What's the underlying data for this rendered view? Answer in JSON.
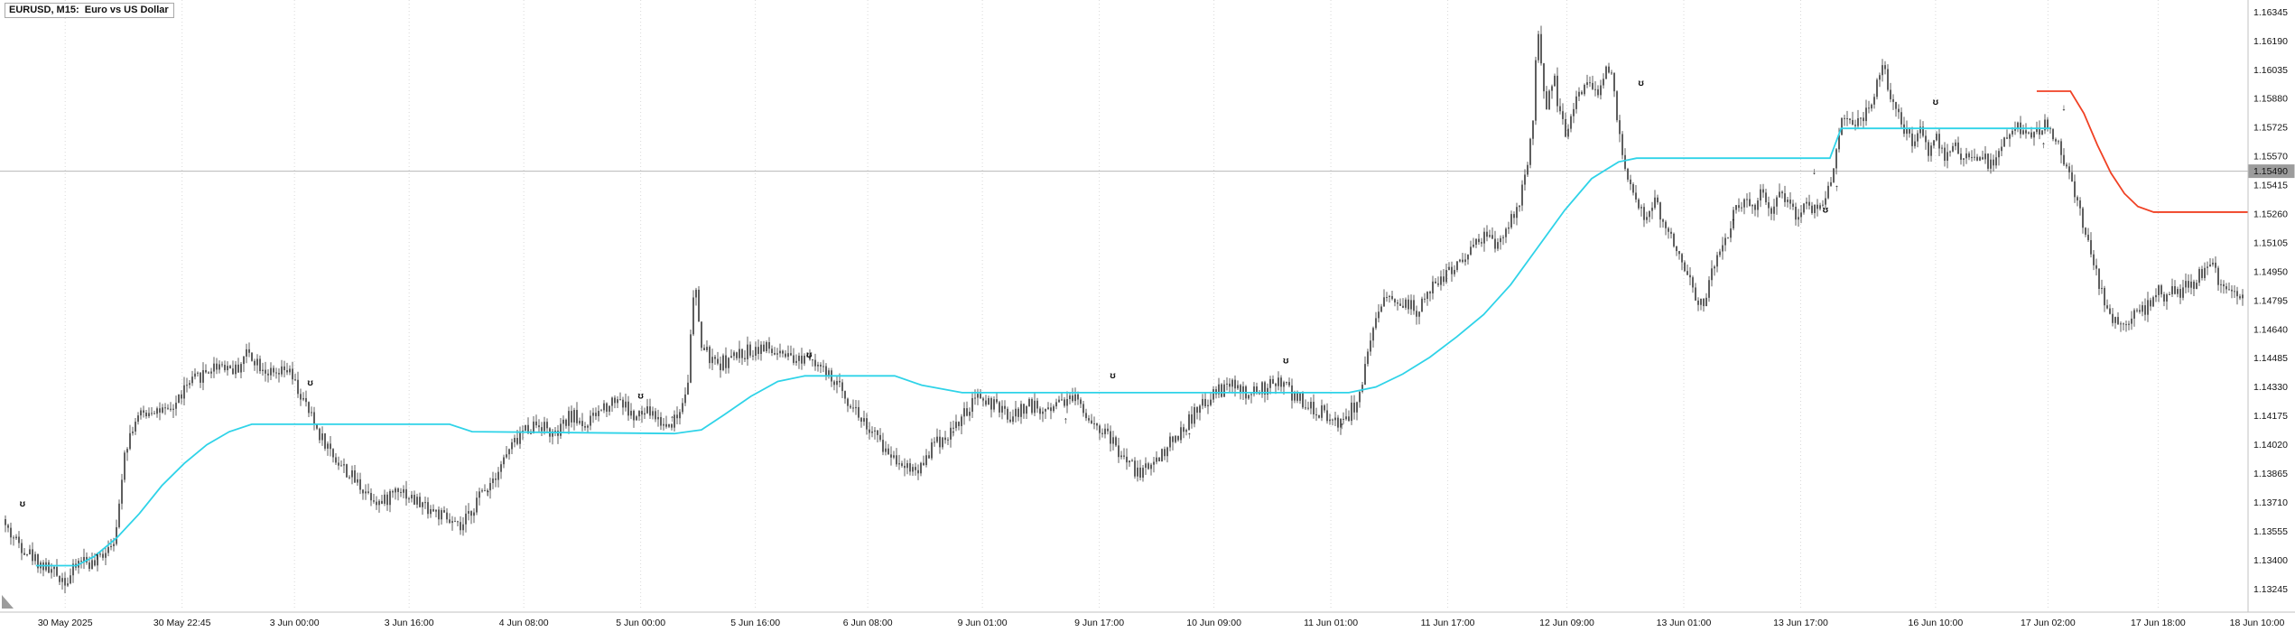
{
  "window": {
    "title": "EURUSD, M15:  Euro vs US Dollar"
  },
  "chart_data": {
    "type": "candlestick",
    "symbol": "EURUSD",
    "timeframe": "M15",
    "description": "Euro vs US Dollar",
    "candle_color": "#4d4d4d",
    "grid_color": "#d9d9d9",
    "axis_line_color": "#c0c0c0",
    "y_axis": {
      "min": 1.1313,
      "max": 1.1641,
      "ticks": [
        "1.16345",
        "1.16190",
        "1.16035",
        "1.15880",
        "1.15725",
        "1.15570",
        "1.15415",
        "1.15260",
        "1.15105",
        "1.14950",
        "1.14795",
        "1.14640",
        "1.14485",
        "1.14330",
        "1.14175",
        "1.14020",
        "1.13865",
        "1.13710",
        "1.13555",
        "1.13400",
        "1.13245"
      ]
    },
    "x_axis": {
      "ticks": [
        {
          "label": "30 May 2025",
          "pos": 0.029
        },
        {
          "label": "30 May 22:45",
          "pos": 0.081
        },
        {
          "label": "3 Jun 00:00",
          "pos": 0.131
        },
        {
          "label": "3 Jun 16:00",
          "pos": 0.182
        },
        {
          "label": "4 Jun 08:00",
          "pos": 0.233
        },
        {
          "label": "5 Jun 00:00",
          "pos": 0.285
        },
        {
          "label": "5 Jun 16:00",
          "pos": 0.336
        },
        {
          "label": "6 Jun 08:00",
          "pos": 0.386
        },
        {
          "label": "9 Jun 01:00",
          "pos": 0.437
        },
        {
          "label": "9 Jun 17:00",
          "pos": 0.489
        },
        {
          "label": "10 Jun 09:00",
          "pos": 0.54
        },
        {
          "label": "11 Jun 01:00",
          "pos": 0.592
        },
        {
          "label": "11 Jun 17:00",
          "pos": 0.644
        },
        {
          "label": "12 Jun 09:00",
          "pos": 0.697
        },
        {
          "label": "13 Jun 01:00",
          "pos": 0.749
        },
        {
          "label": "13 Jun 17:00",
          "pos": 0.801
        },
        {
          "label": "16 Jun 10:00",
          "pos": 0.861
        },
        {
          "label": "17 Jun 02:00",
          "pos": 0.911
        },
        {
          "label": "17 Jun 18:00",
          "pos": 0.96
        },
        {
          "label": "18 Jun 10:00",
          "pos": 1.005
        }
      ]
    },
    "price_line": {
      "value": 1.1549,
      "label": "1.15490",
      "line_color": "#b8b8b8",
      "tag_bg": "#9c9c9c",
      "tag_text_color": "#ffffff"
    },
    "price_path": [
      [
        0.0,
        1.1362
      ],
      [
        0.006,
        1.1352
      ],
      [
        0.012,
        1.1345
      ],
      [
        0.018,
        1.1338
      ],
      [
        0.024,
        1.1333
      ],
      [
        0.03,
        1.1329
      ],
      [
        0.036,
        1.1341
      ],
      [
        0.042,
        1.1337
      ],
      [
        0.048,
        1.1348
      ],
      [
        0.052,
        1.1355
      ],
      [
        0.055,
        1.1398
      ],
      [
        0.06,
        1.1415
      ],
      [
        0.068,
        1.1422
      ],
      [
        0.075,
        1.1418
      ],
      [
        0.082,
        1.1432
      ],
      [
        0.09,
        1.144
      ],
      [
        0.098,
        1.1446
      ],
      [
        0.105,
        1.1442
      ],
      [
        0.11,
        1.1452
      ],
      [
        0.116,
        1.1445
      ],
      [
        0.122,
        1.1438
      ],
      [
        0.128,
        1.1442
      ],
      [
        0.135,
        1.1425
      ],
      [
        0.142,
        1.1408
      ],
      [
        0.149,
        1.1395
      ],
      [
        0.156,
        1.1385
      ],
      [
        0.163,
        1.1377
      ],
      [
        0.17,
        1.137
      ],
      [
        0.177,
        1.138
      ],
      [
        0.184,
        1.1372
      ],
      [
        0.191,
        1.1368
      ],
      [
        0.198,
        1.1362
      ],
      [
        0.205,
        1.1356
      ],
      [
        0.212,
        1.1372
      ],
      [
        0.219,
        1.1384
      ],
      [
        0.226,
        1.1398
      ],
      [
        0.233,
        1.141
      ],
      [
        0.24,
        1.1414
      ],
      [
        0.247,
        1.1406
      ],
      [
        0.254,
        1.1418
      ],
      [
        0.261,
        1.1412
      ],
      [
        0.268,
        1.1422
      ],
      [
        0.275,
        1.1428
      ],
      [
        0.282,
        1.1416
      ],
      [
        0.289,
        1.142
      ],
      [
        0.296,
        1.1412
      ],
      [
        0.302,
        1.1418
      ],
      [
        0.306,
        1.1438
      ],
      [
        0.309,
        1.149
      ],
      [
        0.312,
        1.1455
      ],
      [
        0.318,
        1.1445
      ],
      [
        0.325,
        1.1448
      ],
      [
        0.332,
        1.1452
      ],
      [
        0.339,
        1.1455
      ],
      [
        0.346,
        1.145
      ],
      [
        0.353,
        1.1446
      ],
      [
        0.36,
        1.1452
      ],
      [
        0.367,
        1.144
      ],
      [
        0.374,
        1.1432
      ],
      [
        0.381,
        1.142
      ],
      [
        0.388,
        1.1408
      ],
      [
        0.395,
        1.1398
      ],
      [
        0.402,
        1.1392
      ],
      [
        0.408,
        1.1388
      ],
      [
        0.415,
        1.1402
      ],
      [
        0.422,
        1.1408
      ],
      [
        0.429,
        1.1418
      ],
      [
        0.436,
        1.1428
      ],
      [
        0.443,
        1.1422
      ],
      [
        0.45,
        1.1416
      ],
      [
        0.457,
        1.1424
      ],
      [
        0.464,
        1.142
      ],
      [
        0.471,
        1.1426
      ],
      [
        0.478,
        1.1428
      ],
      [
        0.485,
        1.1416
      ],
      [
        0.492,
        1.1408
      ],
      [
        0.499,
        1.1396
      ],
      [
        0.506,
        1.1387
      ],
      [
        0.513,
        1.1392
      ],
      [
        0.52,
        1.1402
      ],
      [
        0.527,
        1.1412
      ],
      [
        0.534,
        1.1422
      ],
      [
        0.541,
        1.143
      ],
      [
        0.548,
        1.1434
      ],
      [
        0.555,
        1.1428
      ],
      [
        0.562,
        1.1432
      ],
      [
        0.569,
        1.1436
      ],
      [
        0.576,
        1.1428
      ],
      [
        0.583,
        1.1422
      ],
      [
        0.59,
        1.1418
      ],
      [
        0.597,
        1.1414
      ],
      [
        0.602,
        1.1422
      ],
      [
        0.606,
        1.1435
      ],
      [
        0.61,
        1.1458
      ],
      [
        0.615,
        1.1478
      ],
      [
        0.62,
        1.1482
      ],
      [
        0.625,
        1.1478
      ],
      [
        0.63,
        1.1474
      ],
      [
        0.635,
        1.1482
      ],
      [
        0.64,
        1.149
      ],
      [
        0.645,
        1.1495
      ],
      [
        0.65,
        1.1502
      ],
      [
        0.655,
        1.1508
      ],
      [
        0.66,
        1.1515
      ],
      [
        0.665,
        1.1508
      ],
      [
        0.67,
        1.1518
      ],
      [
        0.675,
        1.1528
      ],
      [
        0.679,
        1.1548
      ],
      [
        0.682,
        1.1575
      ],
      [
        0.684,
        1.1632
      ],
      [
        0.686,
        1.1595
      ],
      [
        0.688,
        1.158
      ],
      [
        0.691,
        1.1602
      ],
      [
        0.694,
        1.1578
      ],
      [
        0.697,
        1.1568
      ],
      [
        0.7,
        1.1585
      ],
      [
        0.703,
        1.1592
      ],
      [
        0.706,
        1.16
      ],
      [
        0.709,
        1.1588
      ],
      [
        0.712,
        1.1595
      ],
      [
        0.715,
        1.1608
      ],
      [
        0.718,
        1.1592
      ],
      [
        0.721,
        1.1562
      ],
      [
        0.724,
        1.1548
      ],
      [
        0.727,
        1.1538
      ],
      [
        0.73,
        1.1528
      ],
      [
        0.733,
        1.1522
      ],
      [
        0.736,
        1.1532
      ],
      [
        0.739,
        1.1524
      ],
      [
        0.742,
        1.1516
      ],
      [
        0.745,
        1.1508
      ],
      [
        0.748,
        1.1502
      ],
      [
        0.751,
        1.1494
      ],
      [
        0.754,
        1.1482
      ],
      [
        0.757,
        1.1476
      ],
      [
        0.76,
        1.1488
      ],
      [
        0.764,
        1.1502
      ],
      [
        0.768,
        1.1515
      ],
      [
        0.772,
        1.1528
      ],
      [
        0.776,
        1.1536
      ],
      [
        0.78,
        1.1528
      ],
      [
        0.784,
        1.1538
      ],
      [
        0.788,
        1.153
      ],
      [
        0.792,
        1.154
      ],
      [
        0.796,
        1.1532
      ],
      [
        0.8,
        1.1524
      ],
      [
        0.804,
        1.1532
      ],
      [
        0.808,
        1.1526
      ],
      [
        0.812,
        1.1538
      ],
      [
        0.815,
        1.1548
      ],
      [
        0.818,
        1.1572
      ],
      [
        0.822,
        1.158
      ],
      [
        0.826,
        1.1574
      ],
      [
        0.83,
        1.1582
      ],
      [
        0.834,
        1.1592
      ],
      [
        0.837,
        1.1608
      ],
      [
        0.84,
        1.1594
      ],
      [
        0.843,
        1.1582
      ],
      [
        0.846,
        1.1574
      ],
      [
        0.85,
        1.1564
      ],
      [
        0.854,
        1.157
      ],
      [
        0.858,
        1.156
      ],
      [
        0.862,
        1.1566
      ],
      [
        0.866,
        1.1556
      ],
      [
        0.87,
        1.1562
      ],
      [
        0.874,
        1.1556
      ],
      [
        0.878,
        1.156
      ],
      [
        0.882,
        1.1556
      ],
      [
        0.886,
        1.1552
      ],
      [
        0.89,
        1.156
      ],
      [
        0.894,
        1.1568
      ],
      [
        0.898,
        1.1572
      ],
      [
        0.902,
        1.1566
      ],
      [
        0.906,
        1.1572
      ],
      [
        0.91,
        1.1574
      ],
      [
        0.914,
        1.1568
      ],
      [
        0.918,
        1.1556
      ],
      [
        0.921,
        1.1546
      ],
      [
        0.924,
        1.1532
      ],
      [
        0.927,
        1.1518
      ],
      [
        0.93,
        1.1504
      ],
      [
        0.933,
        1.1492
      ],
      [
        0.936,
        1.148
      ],
      [
        0.939,
        1.1472
      ],
      [
        0.942,
        1.1468
      ],
      [
        0.945,
        1.1466
      ],
      [
        0.948,
        1.1473
      ],
      [
        0.951,
        1.1478
      ],
      [
        0.954,
        1.1474
      ],
      [
        0.957,
        1.148
      ],
      [
        0.96,
        1.1484
      ],
      [
        0.963,
        1.148
      ],
      [
        0.966,
        1.1486
      ],
      [
        0.969,
        1.1482
      ],
      [
        0.972,
        1.149
      ],
      [
        0.975,
        1.1486
      ],
      [
        0.978,
        1.1492
      ],
      [
        0.981,
        1.1496
      ],
      [
        0.984,
        1.1498
      ],
      [
        0.987,
        1.1491
      ],
      [
        0.99,
        1.1486
      ],
      [
        0.993,
        1.1488
      ],
      [
        0.996,
        1.1484
      ],
      [
        1.0,
        1.1486
      ]
    ],
    "indicator": {
      "name": "trend-stop-line",
      "up_color": "#2fd3e8",
      "down_color": "#f04124",
      "up_points": [
        [
          0.016,
          1.1337
        ],
        [
          0.034,
          1.1337
        ],
        [
          0.042,
          1.1342
        ],
        [
          0.052,
          1.1352
        ],
        [
          0.062,
          1.1365
        ],
        [
          0.072,
          1.138
        ],
        [
          0.082,
          1.1392
        ],
        [
          0.092,
          1.1402
        ],
        [
          0.102,
          1.1409
        ],
        [
          0.112,
          1.1413
        ],
        [
          0.15,
          1.1413
        ],
        [
          0.2,
          1.1413
        ],
        [
          0.21,
          1.1409
        ],
        [
          0.3,
          1.1408
        ],
        [
          0.312,
          1.141
        ],
        [
          0.322,
          1.1418
        ],
        [
          0.334,
          1.1428
        ],
        [
          0.346,
          1.1436
        ],
        [
          0.358,
          1.1439
        ],
        [
          0.398,
          1.1439
        ],
        [
          0.41,
          1.1434
        ],
        [
          0.428,
          1.143
        ],
        [
          0.6,
          1.143
        ],
        [
          0.612,
          1.1433
        ],
        [
          0.624,
          1.144
        ],
        [
          0.636,
          1.1449
        ],
        [
          0.648,
          1.146
        ],
        [
          0.66,
          1.1472
        ],
        [
          0.672,
          1.1488
        ],
        [
          0.684,
          1.1508
        ],
        [
          0.696,
          1.1528
        ],
        [
          0.708,
          1.1545
        ],
        [
          0.72,
          1.1554
        ],
        [
          0.728,
          1.1556
        ],
        [
          0.814,
          1.1556
        ],
        [
          0.819,
          1.1572
        ],
        [
          0.912,
          1.1572
        ]
      ],
      "down_points": [
        [
          0.906,
          1.1592
        ],
        [
          0.921,
          1.1592
        ],
        [
          0.927,
          1.158
        ],
        [
          0.933,
          1.1563
        ],
        [
          0.939,
          1.1548
        ],
        [
          0.945,
          1.1537
        ],
        [
          0.951,
          1.153
        ],
        [
          0.958,
          1.1527
        ],
        [
          1.0,
          1.1527
        ]
      ]
    },
    "markers": {
      "buy_arrow_glyph": "↑",
      "sell_arrow_glyph": "↓",
      "signal_glyph": "ʊ",
      "buy_arrows": [
        [
          0.043,
          1.1343
        ],
        [
          0.217,
          1.1377
        ],
        [
          0.299,
          1.1417
        ],
        [
          0.424,
          1.1409
        ],
        [
          0.474,
          1.1416
        ],
        [
          0.529,
          1.1408
        ],
        [
          0.597,
          1.1413
        ],
        [
          0.771,
          1.1523
        ],
        [
          0.817,
          1.1541
        ],
        [
          0.909,
          1.1564
        ]
      ],
      "sell_arrows": [
        [
          0.807,
          1.155
        ],
        [
          0.918,
          1.1584
        ]
      ],
      "up_signals": [
        [
          0.01,
          1.1371
        ],
        [
          0.138,
          1.1436
        ],
        [
          0.285,
          1.1429
        ],
        [
          0.36,
          1.1451
        ],
        [
          0.495,
          1.144
        ],
        [
          0.572,
          1.1448
        ],
        [
          0.73,
          1.1597
        ],
        [
          0.861,
          1.1587
        ]
      ],
      "down_signals": [
        [
          0.812,
          1.1529
        ]
      ]
    }
  }
}
